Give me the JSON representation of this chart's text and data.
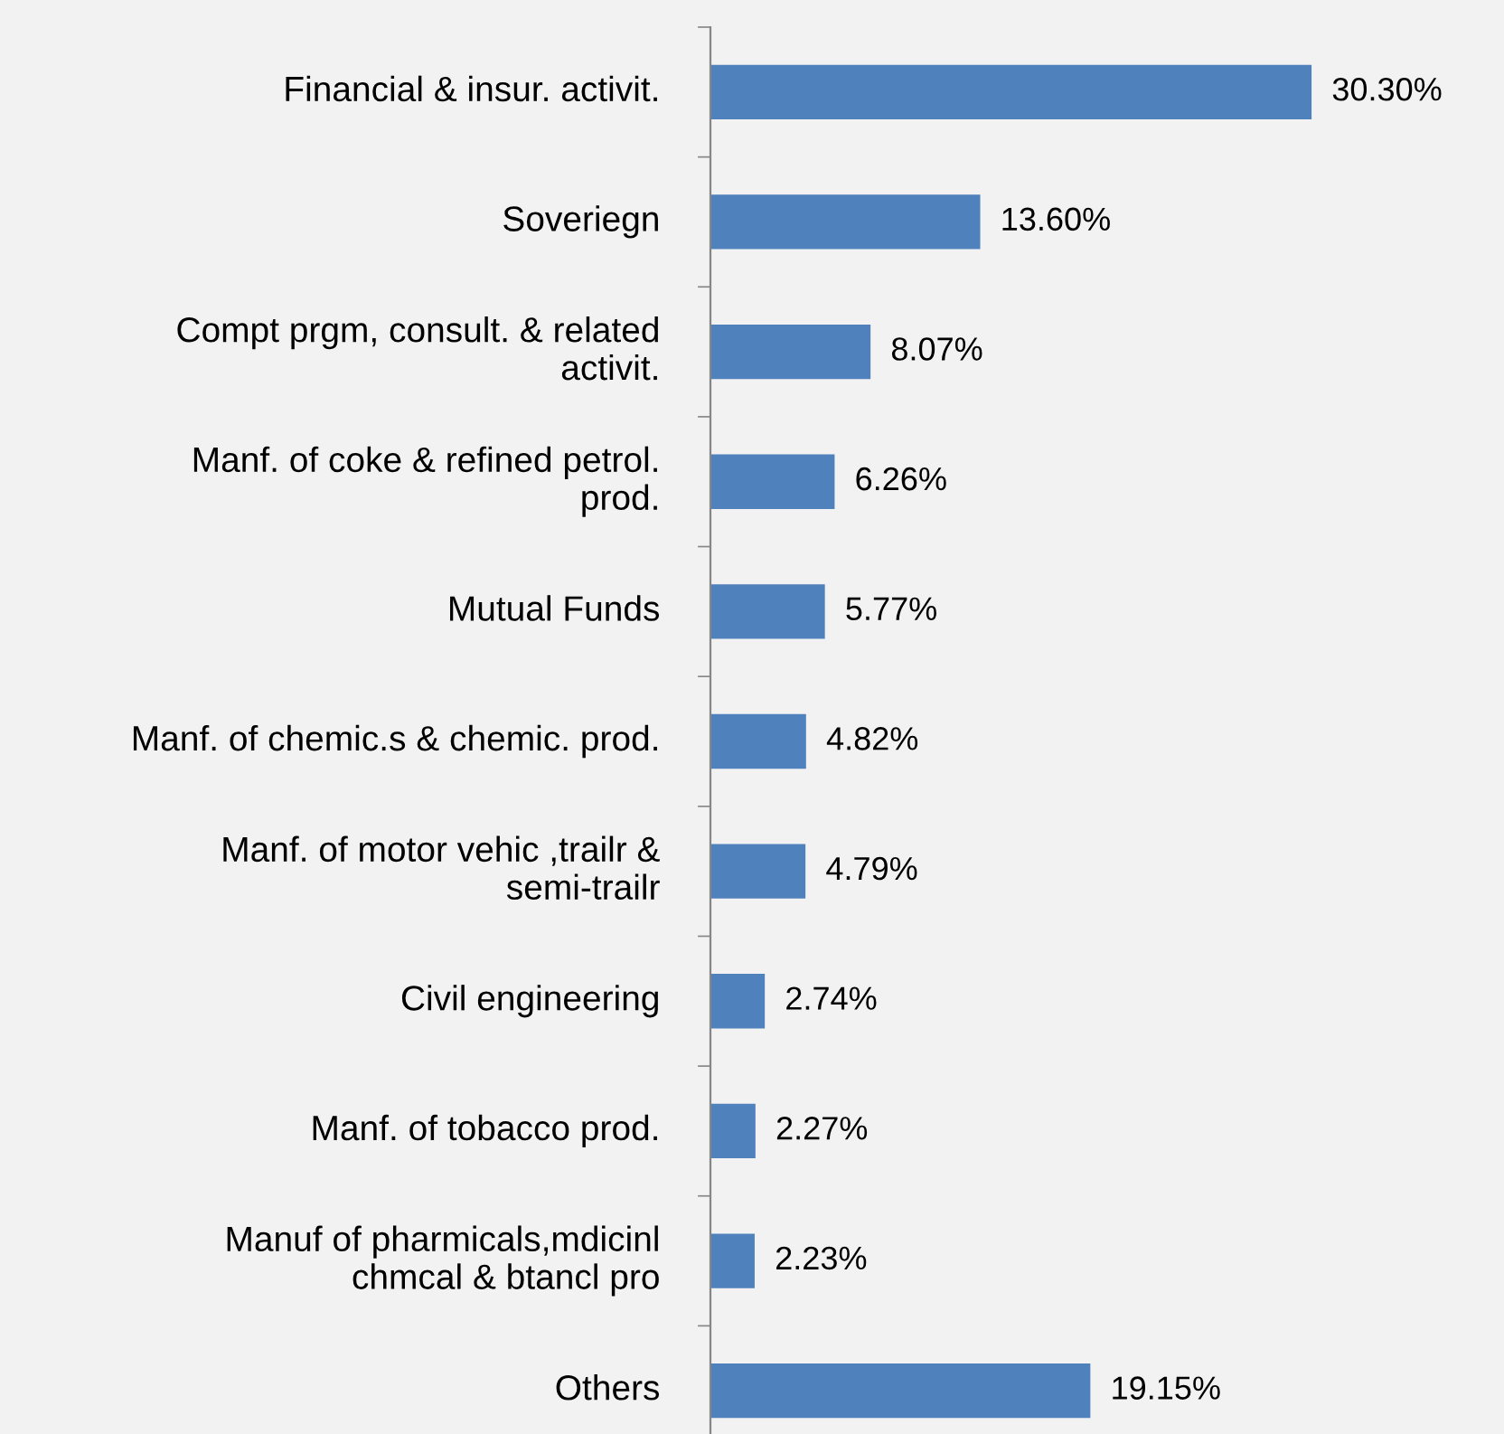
{
  "chart_data": {
    "type": "bar",
    "orientation": "horizontal",
    "categories": [
      "Financial & insur. activit.",
      "Soveriegn",
      "Compt prgm, consult. & related activit.",
      "Manf. of coke & refined petrol. prod.",
      "Mutual Funds",
      "Manf. of chemic.s & chemic. prod.",
      "Manf. of motor vehic ,trailr & semi-trailr",
      "Civil engineering",
      "Manf. of tobacco prod.",
      "Manuf of pharmicals,mdicinl chmcal & btancl pro",
      "Others"
    ],
    "values": [
      30.3,
      13.6,
      8.07,
      6.26,
      5.77,
      4.82,
      4.79,
      2.74,
      2.27,
      2.23,
      19.15
    ],
    "value_labels": [
      "30.30%",
      "13.60%",
      "8.07%",
      "6.26%",
      "5.77%",
      "4.82%",
      "4.79%",
      "2.74%",
      "2.27%",
      "2.23%",
      "19.15%"
    ],
    "color": "#4f81bd",
    "xlim": [
      0,
      40
    ]
  }
}
